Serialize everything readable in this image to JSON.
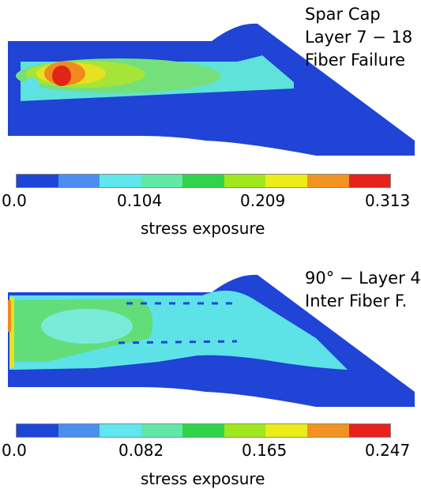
{
  "panels": [
    {
      "label_lines": [
        "Spar Cap",
        "Layer 7 − 18",
        "Fiber Failure"
      ],
      "colorbar": {
        "title": "stress exposure",
        "ticks": [
          "0.0",
          "0.104",
          "0.209",
          "0.313"
        ],
        "colors": [
          "#1d46d8",
          "#4a8ff0",
          "#5ee7ef",
          "#5fe8a6",
          "#2fd44a",
          "#9ee81c",
          "#ecec18",
          "#f29321",
          "#e8211d"
        ]
      }
    },
    {
      "label_lines": [
        "90° − Layer 4",
        "Inter Fiber F."
      ],
      "colorbar": {
        "title": "stress exposure",
        "ticks": [
          "0.0",
          "0.082",
          "0.165",
          "0.247"
        ],
        "colors": [
          "#1d46d8",
          "#4a8ff0",
          "#5ee7ef",
          "#5fe8a6",
          "#2fd44a",
          "#9ee81c",
          "#ecec18",
          "#f29321",
          "#e8211d"
        ]
      }
    }
  ],
  "colors": {
    "structure_base": "#1f44d6",
    "fringe_cyan": "#5de2e8",
    "fringe_green": "#62dd7a",
    "fringe_lime": "#a6e437",
    "fringe_yellow": "#e6e21f",
    "fringe_orange": "#f1891f",
    "fringe_red": "#e02418"
  }
}
